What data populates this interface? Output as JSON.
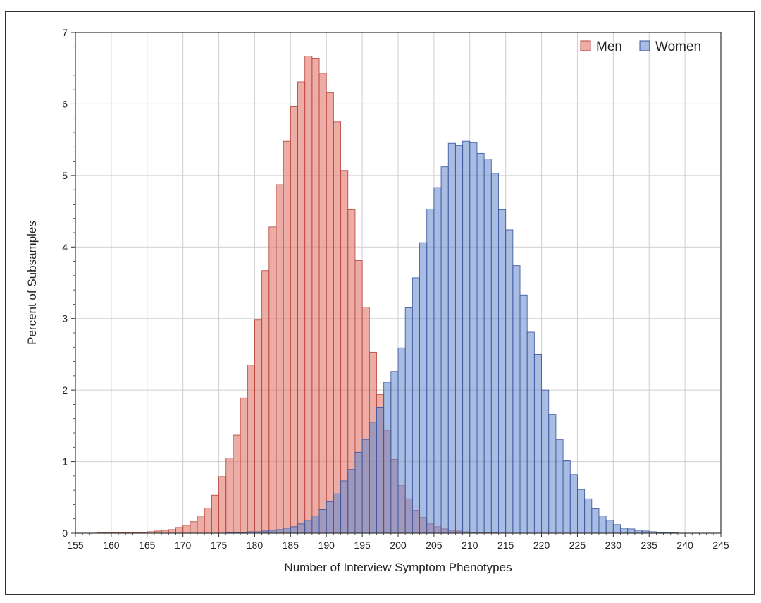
{
  "chart_data": {
    "type": "bar",
    "subtype": "overlaid-histogram",
    "title": "",
    "xlabel": "Number of Interview Symptom Phenotypes",
    "ylabel": "Percent of Subsamples",
    "xlim": [
      155,
      245
    ],
    "ylim": [
      0,
      7
    ],
    "xticks": [
      155,
      160,
      165,
      170,
      175,
      180,
      185,
      190,
      195,
      200,
      205,
      210,
      215,
      220,
      225,
      230,
      235,
      240,
      245
    ],
    "yticks": [
      0,
      1,
      2,
      3,
      4,
      5,
      6,
      7
    ],
    "grid": true,
    "legend_position": "top-right",
    "bin_width": 1,
    "bin_start": 158,
    "series": [
      {
        "name": "Men",
        "fill": "#e07b70",
        "stroke": "#b8433c",
        "values": [
          0.01,
          0.01,
          0.01,
          0.01,
          0.01,
          0.01,
          0.01,
          0.02,
          0.03,
          0.04,
          0.05,
          0.08,
          0.11,
          0.16,
          0.24,
          0.35,
          0.53,
          0.79,
          1.05,
          1.37,
          1.89,
          2.35,
          2.98,
          3.67,
          4.28,
          4.87,
          5.48,
          5.96,
          6.31,
          6.67,
          6.64,
          6.43,
          6.16,
          5.75,
          5.07,
          4.52,
          3.81,
          3.16,
          2.53,
          1.94,
          1.44,
          1.03,
          0.67,
          0.48,
          0.32,
          0.22,
          0.13,
          0.09,
          0.06,
          0.04,
          0.03,
          0.02,
          0.01,
          0.01,
          0.01,
          0.01,
          0.0,
          0.0,
          0.0,
          0.0,
          0.0,
          0.0,
          0.0,
          0.0,
          0.0,
          0.0,
          0.0,
          0.0,
          0.0,
          0.0,
          0.0,
          0.0,
          0.0,
          0.0,
          0.0,
          0.0,
          0.0,
          0.0,
          0.0,
          0.0,
          0.0,
          0.0,
          0.0,
          0.0
        ]
      },
      {
        "name": "Women",
        "fill": "#6b8ccc",
        "stroke": "#3a56a3",
        "values": [
          0.0,
          0.0,
          0.0,
          0.0,
          0.0,
          0.0,
          0.0,
          0.0,
          0.0,
          0.0,
          0.0,
          0.0,
          0.0,
          0.0,
          0.0,
          0.0,
          0.0,
          0.0,
          0.01,
          0.01,
          0.01,
          0.02,
          0.02,
          0.03,
          0.04,
          0.05,
          0.07,
          0.09,
          0.13,
          0.18,
          0.24,
          0.33,
          0.44,
          0.55,
          0.73,
          0.89,
          1.13,
          1.31,
          1.55,
          1.76,
          2.11,
          2.26,
          2.59,
          3.15,
          3.57,
          4.06,
          4.53,
          4.83,
          5.12,
          5.45,
          5.42,
          5.48,
          5.46,
          5.31,
          5.23,
          5.03,
          4.52,
          4.24,
          3.74,
          3.33,
          2.81,
          2.5,
          2.0,
          1.66,
          1.31,
          1.02,
          0.82,
          0.61,
          0.48,
          0.34,
          0.24,
          0.18,
          0.12,
          0.07,
          0.06,
          0.04,
          0.03,
          0.02,
          0.01,
          0.01,
          0.01,
          0.0,
          0.0,
          0.0
        ]
      }
    ]
  }
}
